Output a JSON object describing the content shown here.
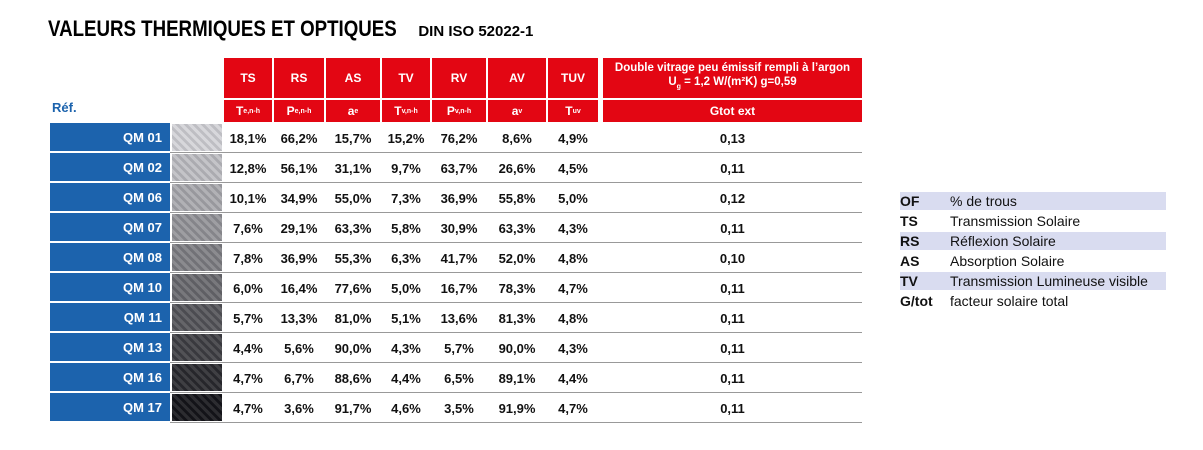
{
  "header": {
    "title": "VALEURS THERMIQUES ET OPTIQUES",
    "subtitle": "DIN ISO 52022-1"
  },
  "table": {
    "ref_label": "Réf.",
    "columns": [
      "TS",
      "RS",
      "AS",
      "TV",
      "RV",
      "AV",
      "TUV"
    ],
    "glazing": {
      "line1": "Double vitrage peu émissif rempli à l’argon",
      "line2": {
        "base": "U",
        "sub": "g",
        "rest": " = 1,2 W/(m²K) g=0,59"
      }
    },
    "symbols": [
      {
        "base": "T",
        "sub": "e,n-h"
      },
      {
        "base": "P",
        "sub": "e,n-h"
      },
      {
        "base": "a",
        "sub": "e"
      },
      {
        "base": "T",
        "sub": "v,n-h"
      },
      {
        "base": "P",
        "sub": "v,n-h"
      },
      {
        "base": "a",
        "sub": "v"
      },
      {
        "base": "T",
        "sub": "uv"
      }
    ],
    "gtot_label": "Gtot ext",
    "rows": [
      {
        "ref": "QM 01",
        "values": [
          "18,1%",
          "66,2%",
          "15,7%",
          "15,2%",
          "76,2%",
          "8,6%",
          "4,9%"
        ],
        "gtot": "0,13"
      },
      {
        "ref": "QM 02",
        "values": [
          "12,8%",
          "56,1%",
          "31,1%",
          "9,7%",
          "63,7%",
          "26,6%",
          "4,5%"
        ],
        "gtot": "0,11"
      },
      {
        "ref": "QM 06",
        "values": [
          "10,1%",
          "34,9%",
          "55,0%",
          "7,3%",
          "36,9%",
          "55,8%",
          "5,0%"
        ],
        "gtot": "0,12"
      },
      {
        "ref": "QM 07",
        "values": [
          "7,6%",
          "29,1%",
          "63,3%",
          "5,8%",
          "30,9%",
          "63,3%",
          "4,3%"
        ],
        "gtot": "0,11"
      },
      {
        "ref": "QM 08",
        "values": [
          "7,8%",
          "36,9%",
          "55,3%",
          "6,3%",
          "41,7%",
          "52,0%",
          "4,8%"
        ],
        "gtot": "0,10"
      },
      {
        "ref": "QM 10",
        "values": [
          "6,0%",
          "16,4%",
          "77,6%",
          "5,0%",
          "16,7%",
          "78,3%",
          "4,7%"
        ],
        "gtot": "0,11"
      },
      {
        "ref": "QM 11",
        "values": [
          "5,7%",
          "13,3%",
          "81,0%",
          "5,1%",
          "13,6%",
          "81,3%",
          "4,8%"
        ],
        "gtot": "0,11"
      },
      {
        "ref": "QM 13",
        "values": [
          "4,4%",
          "5,6%",
          "90,0%",
          "4,3%",
          "5,7%",
          "90,0%",
          "4,3%"
        ],
        "gtot": "0,11"
      },
      {
        "ref": "QM 16",
        "values": [
          "4,7%",
          "6,7%",
          "88,6%",
          "4,4%",
          "6,5%",
          "89,1%",
          "4,4%"
        ],
        "gtot": "0,11"
      },
      {
        "ref": "QM 17",
        "values": [
          "4,7%",
          "3,6%",
          "91,7%",
          "4,6%",
          "3,5%",
          "91,9%",
          "4,7%"
        ],
        "gtot": "0,11"
      }
    ]
  },
  "legend": [
    {
      "abbr": "OF",
      "text": "% de trous"
    },
    {
      "abbr": "TS",
      "text": "Transmission Solaire"
    },
    {
      "abbr": "RS",
      "text": "Réflexion Solaire"
    },
    {
      "abbr": "AS",
      "text": "Absorption Solaire"
    },
    {
      "abbr": "TV",
      "text": "Transmission Lumineuse visible"
    },
    {
      "abbr": "G/tot",
      "text": "facteur solaire total"
    }
  ]
}
